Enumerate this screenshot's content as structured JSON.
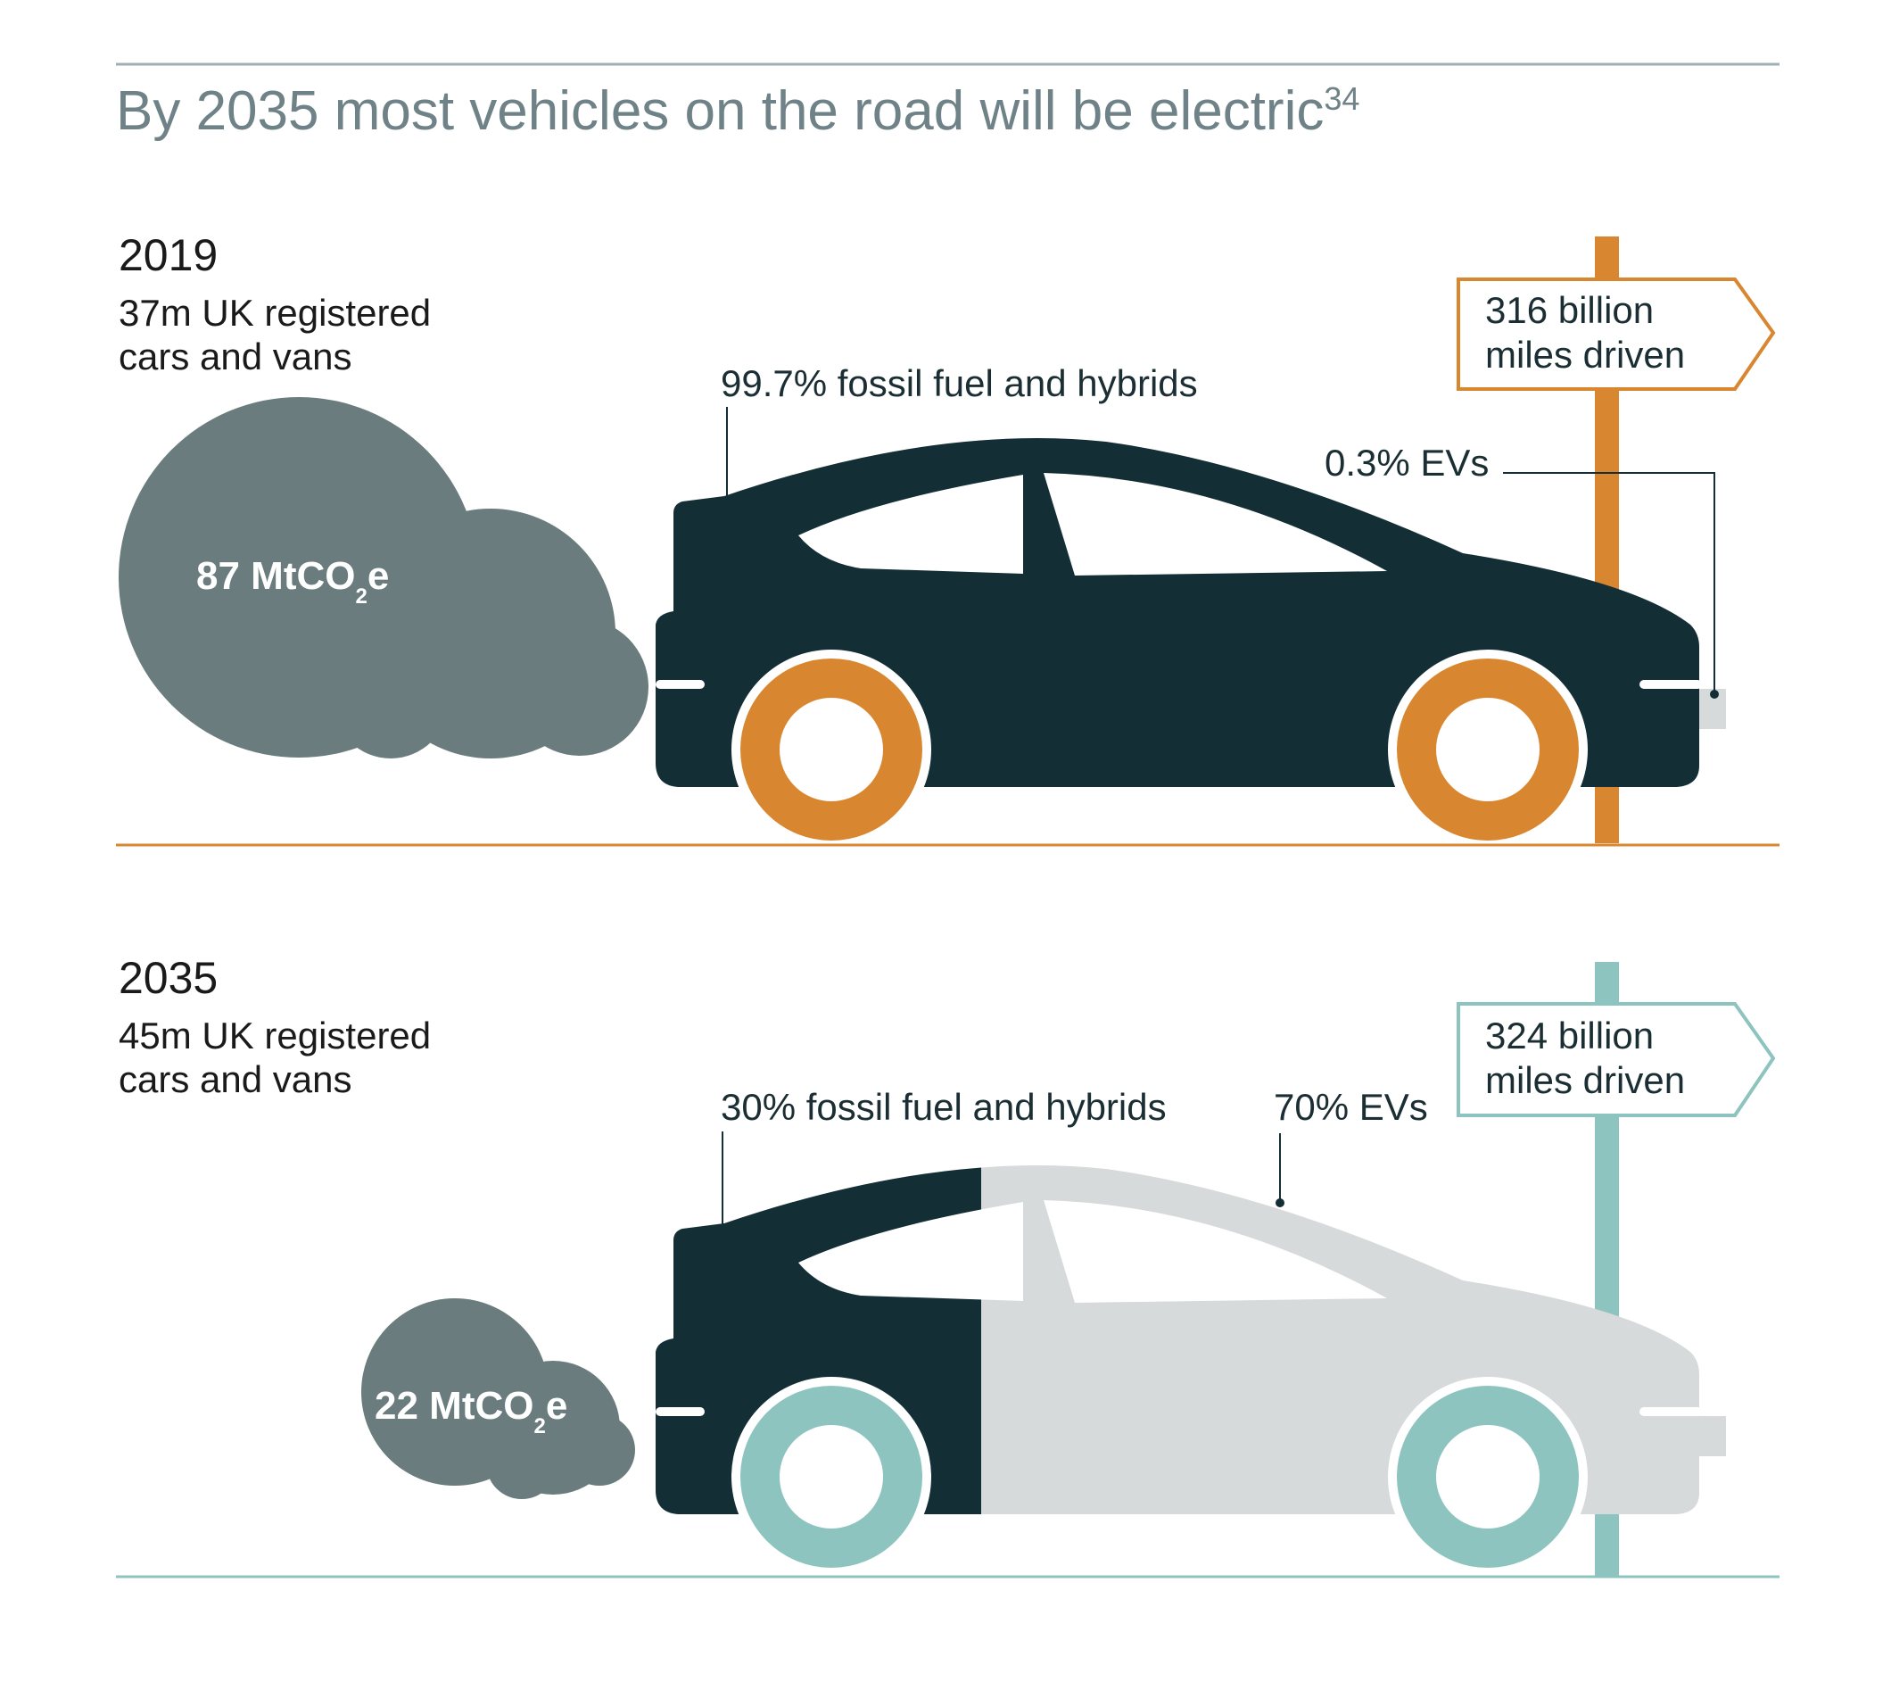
{
  "title": "By 2035 most vehicles on the road will be electric",
  "title_footnote": "34",
  "colors": {
    "title": "#6e8287",
    "car_dark": "#132e35",
    "car_light": "#d6dadb",
    "smoke": "#6b7c7e",
    "accent_2019": "#d98630",
    "accent_2035": "#8ec4bf",
    "rule": "#9fb0b3"
  },
  "panels": [
    {
      "year": "2019",
      "fleet_line1": "37m UK registered",
      "fleet_line2": "cars and vans",
      "emissions_value": "87 MtCO",
      "emissions_subscript": "2",
      "emissions_suffix": "e",
      "fossil_label": "99.7% fossil fuel and hybrids",
      "ev_label": "0.3% EVs",
      "fossil_share_pct": 99.7,
      "ev_share_pct": 0.3,
      "miles_line1": "316 billion",
      "miles_line2": "miles driven"
    },
    {
      "year": "2035",
      "fleet_line1": "45m UK registered",
      "fleet_line2": "cars and vans",
      "emissions_value": "22 MtCO",
      "emissions_subscript": "2",
      "emissions_suffix": "e",
      "fossil_label": "30% fossil fuel and hybrids",
      "ev_label": "70% EVs",
      "fossil_share_pct": 30,
      "ev_share_pct": 70,
      "miles_line1": "324 billion",
      "miles_line2": "miles driven"
    }
  ]
}
